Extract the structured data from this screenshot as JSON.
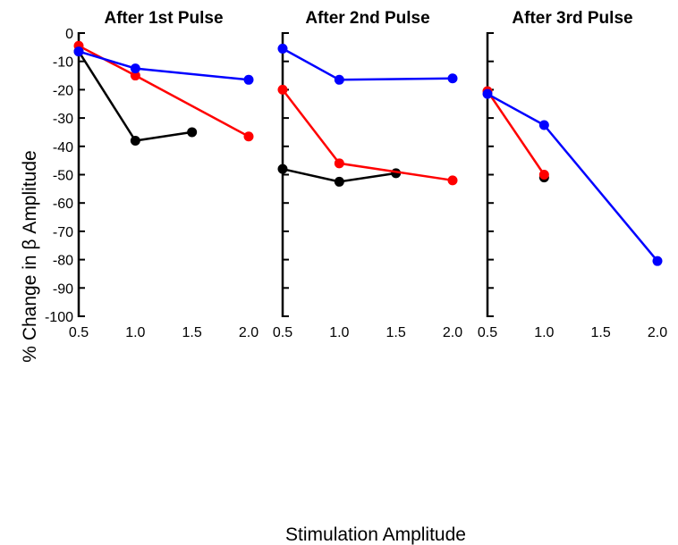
{
  "chart_data": {
    "type": "line",
    "ylabel": "% Change in β Amplitude",
    "xlabel": "Stimulation Amplitude",
    "ylim": [
      -100,
      0
    ],
    "yticks": [
      0,
      -10,
      -20,
      -30,
      -40,
      -50,
      -60,
      -70,
      -80,
      -90,
      -100
    ],
    "xlim": [
      0.5,
      2.0
    ],
    "xticks": [
      "0.5",
      "1.0",
      "1.5",
      "2.0"
    ],
    "grid": false,
    "legend": "none",
    "panels": [
      {
        "title": "After 1st Pulse",
        "series": [
          {
            "color": "#000000",
            "x": [
              0.5,
              1.0,
              1.5
            ],
            "y": [
              -6.5,
              -38,
              -35
            ]
          },
          {
            "color": "#ff0000",
            "x": [
              0.5,
              1.0,
              2.0
            ],
            "y": [
              -4.5,
              -15,
              -36.5
            ]
          },
          {
            "color": "#0000ff",
            "x": [
              0.5,
              1.0,
              2.0
            ],
            "y": [
              -6.5,
              -12.5,
              -16.5
            ]
          }
        ]
      },
      {
        "title": "After 2nd Pulse",
        "series": [
          {
            "color": "#000000",
            "x": [
              0.5,
              1.0,
              1.5
            ],
            "y": [
              -48,
              -52.5,
              -49.5
            ]
          },
          {
            "color": "#ff0000",
            "x": [
              0.5,
              1.0,
              2.0
            ],
            "y": [
              -20,
              -46,
              -52
            ]
          },
          {
            "color": "#0000ff",
            "x": [
              0.5,
              1.0,
              2.0
            ],
            "y": [
              -5.5,
              -16.5,
              -16
            ]
          }
        ]
      },
      {
        "title": "After 3rd Pulse",
        "series": [
          {
            "color": "#000000",
            "x": [
              1.0
            ],
            "y": [
              -51
            ]
          },
          {
            "color": "#ff0000",
            "x": [
              0.5,
              1.0
            ],
            "y": [
              -20.5,
              -50
            ]
          },
          {
            "color": "#0000ff",
            "x": [
              0.5,
              1.0,
              2.0
            ],
            "y": [
              -21.5,
              -32.5,
              -80.5
            ]
          }
        ]
      }
    ]
  }
}
